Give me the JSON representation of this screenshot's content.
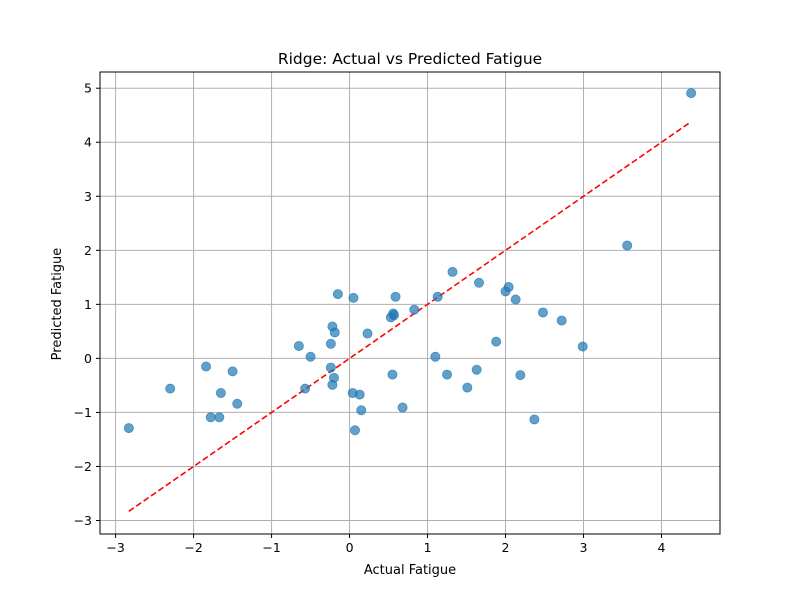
{
  "chart_data": {
    "type": "scatter",
    "title": "Ridge: Actual vs Predicted Fatigue",
    "xlabel": "Actual Fatigue",
    "ylabel": "Predicted Fatigue",
    "xlim": [
      -3.2,
      4.75
    ],
    "ylim": [
      -3.25,
      5.3
    ],
    "xticks": [
      -3,
      -2,
      -1,
      0,
      1,
      2,
      3,
      4
    ],
    "yticks": [
      -3,
      -2,
      -1,
      0,
      1,
      2,
      3,
      4,
      5
    ],
    "xtick_labels": [
      "−3",
      "−2",
      "−1",
      "0",
      "1",
      "2",
      "3",
      "4"
    ],
    "ytick_labels": [
      "−3",
      "−2",
      "−1",
      "0",
      "1",
      "2",
      "3",
      "4",
      "5"
    ],
    "grid": true,
    "point_color": "#1f77b4",
    "reference_line": {
      "x": [
        -2.83,
        4.38
      ],
      "y": [
        -2.83,
        4.38
      ],
      "color": "#ff0000",
      "style": "dashed"
    },
    "points": [
      {
        "x": -2.83,
        "y": -1.29
      },
      {
        "x": -2.3,
        "y": -0.56
      },
      {
        "x": -1.84,
        "y": -0.15
      },
      {
        "x": -1.78,
        "y": -1.09
      },
      {
        "x": -1.67,
        "y": -1.09
      },
      {
        "x": -1.65,
        "y": -0.64
      },
      {
        "x": -1.5,
        "y": -0.24
      },
      {
        "x": -1.44,
        "y": -0.84
      },
      {
        "x": -0.65,
        "y": 0.23
      },
      {
        "x": -0.57,
        "y": -0.56
      },
      {
        "x": -0.5,
        "y": 0.03
      },
      {
        "x": -0.24,
        "y": 0.27
      },
      {
        "x": -0.24,
        "y": -0.17
      },
      {
        "x": -0.22,
        "y": 0.59
      },
      {
        "x": -0.22,
        "y": -0.49
      },
      {
        "x": -0.2,
        "y": -0.36
      },
      {
        "x": -0.19,
        "y": 0.48
      },
      {
        "x": -0.15,
        "y": 1.19
      },
      {
        "x": 0.04,
        "y": -0.64
      },
      {
        "x": 0.05,
        "y": 1.12
      },
      {
        "x": 0.07,
        "y": -1.33
      },
      {
        "x": 0.13,
        "y": -0.67
      },
      {
        "x": 0.15,
        "y": -0.96
      },
      {
        "x": 0.23,
        "y": 0.46
      },
      {
        "x": 0.53,
        "y": 0.76
      },
      {
        "x": 0.55,
        "y": -0.3
      },
      {
        "x": 0.56,
        "y": 0.83
      },
      {
        "x": 0.57,
        "y": 0.8
      },
      {
        "x": 0.59,
        "y": 1.14
      },
      {
        "x": 0.68,
        "y": -0.91
      },
      {
        "x": 0.83,
        "y": 0.9
      },
      {
        "x": 1.1,
        "y": 0.03
      },
      {
        "x": 1.13,
        "y": 1.14
      },
      {
        "x": 1.25,
        "y": -0.3
      },
      {
        "x": 1.32,
        "y": 1.6
      },
      {
        "x": 1.51,
        "y": -0.54
      },
      {
        "x": 1.63,
        "y": -0.21
      },
      {
        "x": 1.66,
        "y": 1.4
      },
      {
        "x": 1.88,
        "y": 0.31
      },
      {
        "x": 2.0,
        "y": 1.24
      },
      {
        "x": 2.04,
        "y": 1.32
      },
      {
        "x": 2.13,
        "y": 1.09
      },
      {
        "x": 2.19,
        "y": -0.31
      },
      {
        "x": 2.37,
        "y": -1.13
      },
      {
        "x": 2.48,
        "y": 0.85
      },
      {
        "x": 2.72,
        "y": 0.7
      },
      {
        "x": 2.99,
        "y": 0.22
      },
      {
        "x": 3.56,
        "y": 2.09
      },
      {
        "x": 4.38,
        "y": 4.91
      }
    ]
  }
}
